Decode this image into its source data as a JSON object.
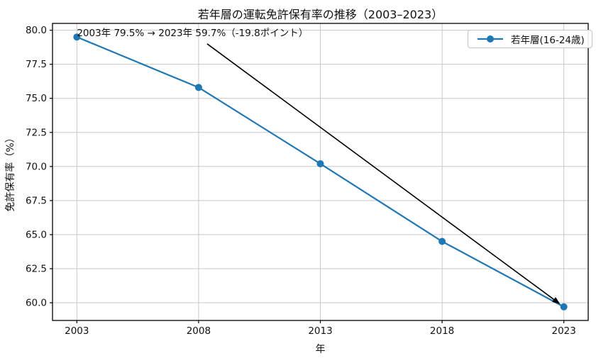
{
  "chart_data": {
    "type": "line",
    "title": "若年層の運転免許保有率の推移（2003–2023）",
    "xlabel": "年",
    "ylabel": "免許保有率（%）",
    "x": [
      2003,
      2008,
      2013,
      2018,
      2023
    ],
    "series": [
      {
        "name": "若年層(16-24歳)",
        "values": [
          79.5,
          75.8,
          70.2,
          64.5,
          59.7
        ],
        "color": "#1f77b4",
        "marker": "circle"
      }
    ],
    "xlim": [
      2002,
      2024
    ],
    "ylim": [
      58.7,
      80.5
    ],
    "xticks": [
      2003,
      2008,
      2013,
      2018,
      2023
    ],
    "xtick_labels": [
      "2003",
      "2008",
      "2013",
      "2018",
      "2023"
    ],
    "yticks": [
      60.0,
      62.5,
      65.0,
      67.5,
      70.0,
      72.5,
      75.0,
      77.5,
      80.0
    ],
    "ytick_labels": [
      "60.0",
      "62.5",
      "65.0",
      "67.5",
      "70.0",
      "72.5",
      "75.0",
      "77.5",
      "80.0"
    ],
    "grid": true,
    "legend_position": "upper right",
    "annotation": {
      "text": "2003年 79.5% → 2023年 59.7%（-19.8ポイント）",
      "text_xy": [
        2003.0,
        79.75
      ],
      "arrow": {
        "from_xy": [
          2008.35,
          79.0
        ],
        "to_xy": [
          2023,
          59.7
        ],
        "color": "#000000"
      }
    }
  },
  "colors": {
    "background": "#ffffff",
    "grid": "#c8c8c8",
    "frame": "#000000",
    "tick": "#000000",
    "text": "#111111",
    "accent_line": "#1f77b4"
  }
}
